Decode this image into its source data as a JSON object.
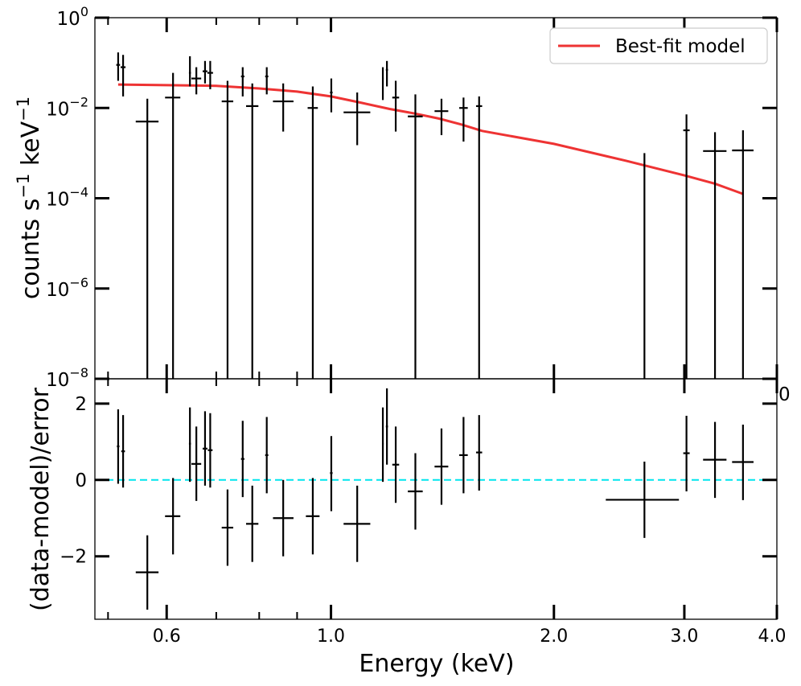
{
  "chart_data": [
    {
      "type": "scatter",
      "panel": "spectrum",
      "ylabel_base": "counts s",
      "ylabel_sup1": "−1",
      "ylabel_mid": " keV",
      "ylabel_sup2": "−1",
      "yscale": "log",
      "xscale": "log",
      "xlim": [
        0.48,
        4.0
      ],
      "ylim": [
        1e-08,
        1
      ],
      "yticks": [
        {
          "value": 1,
          "base": "10",
          "exp": "0"
        },
        {
          "value": 0.01,
          "base": "10",
          "exp": "−2"
        },
        {
          "value": 0.0001,
          "base": "10",
          "exp": "−4"
        },
        {
          "value": 1e-06,
          "base": "10",
          "exp": "−6"
        },
        {
          "value": 1e-08,
          "base": "10",
          "exp": "−8"
        }
      ],
      "legend": {
        "label": "Best-fit model",
        "color": "#ee3333",
        "placement": "top-right"
      },
      "series": [
        {
          "name": "data",
          "color": "#000000",
          "points": [
            {
              "x": 0.516,
              "xlo": 0.513,
              "xhi": 0.519,
              "y": 0.09,
              "ylo": 0.04,
              "yhi": 0.17
            },
            {
              "x": 0.524,
              "xlo": 0.52,
              "xhi": 0.528,
              "y": 0.08,
              "ylo": 0.018,
              "yhi": 0.15
            },
            {
              "x": 0.565,
              "xlo": 0.545,
              "xhi": 0.585,
              "y": 0.005,
              "ylo": 1e-08,
              "yhi": 0.016
            },
            {
              "x": 0.612,
              "xlo": 0.597,
              "xhi": 0.626,
              "y": 0.017,
              "ylo": 1e-08,
              "yhi": 0.06
            },
            {
              "x": 0.645,
              "xlo": 0.643,
              "xhi": 0.647,
              "y": 0.06,
              "ylo": 0.03,
              "yhi": 0.14
            },
            {
              "x": 0.658,
              "xlo": 0.648,
              "xhi": 0.668,
              "y": 0.045,
              "ylo": 0.02,
              "yhi": 0.08
            },
            {
              "x": 0.676,
              "xlo": 0.671,
              "xhi": 0.681,
              "y": 0.065,
              "ylo": 0.035,
              "yhi": 0.11
            },
            {
              "x": 0.687,
              "xlo": 0.681,
              "xhi": 0.693,
              "y": 0.06,
              "ylo": 0.026,
              "yhi": 0.11
            },
            {
              "x": 0.725,
              "xlo": 0.712,
              "xhi": 0.738,
              "y": 0.014,
              "ylo": 1e-08,
              "yhi": 0.04
            },
            {
              "x": 0.76,
              "xlo": 0.756,
              "xhi": 0.764,
              "y": 0.05,
              "ylo": 0.018,
              "yhi": 0.08
            },
            {
              "x": 0.783,
              "xlo": 0.768,
              "xhi": 0.798,
              "y": 0.011,
              "ylo": 1e-08,
              "yhi": 0.035
            },
            {
              "x": 0.819,
              "xlo": 0.815,
              "xhi": 0.823,
              "y": 0.05,
              "ylo": 0.02,
              "yhi": 0.08
            },
            {
              "x": 0.862,
              "xlo": 0.835,
              "xhi": 0.89,
              "y": 0.014,
              "ylo": 0.003,
              "yhi": 0.035
            },
            {
              "x": 0.945,
              "xlo": 0.93,
              "xhi": 0.96,
              "y": 0.01,
              "ylo": 1e-08,
              "yhi": 0.03
            },
            {
              "x": 1.001,
              "xlo": 0.997,
              "xhi": 1.005,
              "y": 0.022,
              "ylo": 0.008,
              "yhi": 0.045
            },
            {
              "x": 1.085,
              "xlo": 1.04,
              "xhi": 1.13,
              "y": 0.008,
              "ylo": 0.0015,
              "yhi": 0.022
            },
            {
              "x": 1.175,
              "xlo": 1.172,
              "xhi": 1.178,
              "y": 0.045,
              "ylo": 0.015,
              "yhi": 0.08
            },
            {
              "x": 1.19,
              "xlo": 1.186,
              "xhi": 1.194,
              "y": 0.07,
              "ylo": 0.03,
              "yhi": 0.11
            },
            {
              "x": 1.223,
              "xlo": 1.21,
              "xhi": 1.236,
              "y": 0.017,
              "ylo": 0.003,
              "yhi": 0.04
            },
            {
              "x": 1.3,
              "xlo": 1.27,
              "xhi": 1.33,
              "y": 0.0065,
              "ylo": 1e-08,
              "yhi": 0.02
            },
            {
              "x": 1.41,
              "xlo": 1.38,
              "xhi": 1.44,
              "y": 0.0085,
              "ylo": 0.0025,
              "yhi": 0.016
            },
            {
              "x": 1.51,
              "xlo": 1.49,
              "xhi": 1.53,
              "y": 0.01,
              "ylo": 0.0018,
              "yhi": 0.017
            },
            {
              "x": 1.585,
              "xlo": 1.57,
              "xhi": 1.6,
              "y": 0.011,
              "ylo": 1e-08,
              "yhi": 0.018
            },
            {
              "x": 2.65,
              "xlo": 2.65,
              "xhi": 2.65,
              "y": 0.0003,
              "ylo": 1e-08,
              "yhi": 0.001
            },
            {
              "x": 3.02,
              "xlo": 2.99,
              "xhi": 3.05,
              "y": 0.0032,
              "ylo": 1e-08,
              "yhi": 0.0072
            },
            {
              "x": 3.3,
              "xlo": 3.18,
              "xhi": 3.42,
              "y": 0.00111,
              "ylo": 1e-08,
              "yhi": 0.0029
            },
            {
              "x": 3.6,
              "xlo": 3.48,
              "xhi": 3.72,
              "y": 0.00115,
              "ylo": 1e-08,
              "yhi": 0.0032
            }
          ]
        },
        {
          "name": "Best-fit model",
          "color": "#ee3333",
          "line": [
            {
              "x": 0.516,
              "y": 0.033
            },
            {
              "x": 0.6,
              "y": 0.032
            },
            {
              "x": 0.7,
              "y": 0.031
            },
            {
              "x": 0.8,
              "y": 0.027
            },
            {
              "x": 0.9,
              "y": 0.023
            },
            {
              "x": 1.0,
              "y": 0.018
            },
            {
              "x": 1.1,
              "y": 0.013
            },
            {
              "x": 1.2,
              "y": 0.0095
            },
            {
              "x": 1.3,
              "y": 0.0075
            },
            {
              "x": 1.4,
              "y": 0.0058
            },
            {
              "x": 1.5,
              "y": 0.0043
            },
            {
              "x": 1.6,
              "y": 0.0031
            },
            {
              "x": 2.0,
              "y": 0.0016
            },
            {
              "x": 2.5,
              "y": 0.00068
            },
            {
              "x": 3.0,
              "y": 0.00032
            },
            {
              "x": 3.3,
              "y": 0.00021
            },
            {
              "x": 3.6,
              "y": 0.000125
            }
          ]
        }
      ]
    },
    {
      "type": "scatter",
      "panel": "residuals",
      "ylabel": "(data-model)/error",
      "xlabel": "Energy (keV)",
      "xscale": "log",
      "xlim": [
        0.48,
        4.0
      ],
      "ylim": [
        -3.65,
        2.65
      ],
      "xticks": [
        {
          "value": 0.6,
          "label": "0.6"
        },
        {
          "value": 1.0,
          "label": "1.0"
        },
        {
          "value": 2.0,
          "label": "2.0"
        },
        {
          "value": 3.0,
          "label": "3.0"
        },
        {
          "value": 4.0,
          "label": "4.0"
        }
      ],
      "yticks": [
        {
          "value": 2,
          "label": "2"
        },
        {
          "value": 0,
          "label": "0"
        },
        {
          "value": -2,
          "label": "−2"
        }
      ],
      "stray_label": "0",
      "zero_line_color": "#00e5ee",
      "series": [
        {
          "name": "residuals",
          "color": "#000000",
          "points": [
            {
              "x": 0.516,
              "xlo": 0.514,
              "xhi": 0.518,
              "y": 0.88,
              "ylo": -0.1,
              "yhi": 1.85
            },
            {
              "x": 0.524,
              "xlo": 0.521,
              "xhi": 0.527,
              "y": 0.75,
              "ylo": -0.2,
              "yhi": 1.7
            },
            {
              "x": 0.565,
              "xlo": 0.545,
              "xhi": 0.585,
              "y": -2.42,
              "ylo": -3.4,
              "yhi": -1.45
            },
            {
              "x": 0.612,
              "xlo": 0.597,
              "xhi": 0.626,
              "y": -0.95,
              "ylo": -1.95,
              "yhi": 0.05
            },
            {
              "x": 0.645,
              "xlo": 0.643,
              "xhi": 0.647,
              "y": 0.95,
              "ylo": -0.05,
              "yhi": 1.9
            },
            {
              "x": 0.658,
              "xlo": 0.648,
              "xhi": 0.668,
              "y": 0.42,
              "ylo": -0.55,
              "yhi": 1.4
            },
            {
              "x": 0.676,
              "xlo": 0.671,
              "xhi": 0.681,
              "y": 0.82,
              "ylo": -0.15,
              "yhi": 1.8
            },
            {
              "x": 0.687,
              "xlo": 0.682,
              "xhi": 0.692,
              "y": 0.78,
              "ylo": -0.2,
              "yhi": 1.75
            },
            {
              "x": 0.725,
              "xlo": 0.712,
              "xhi": 0.738,
              "y": -1.25,
              "ylo": -2.25,
              "yhi": -0.25
            },
            {
              "x": 0.76,
              "xlo": 0.756,
              "xhi": 0.764,
              "y": 0.55,
              "ylo": -0.45,
              "yhi": 1.55
            },
            {
              "x": 0.783,
              "xlo": 0.768,
              "xhi": 0.798,
              "y": -1.15,
              "ylo": -2.15,
              "yhi": -0.15
            },
            {
              "x": 0.819,
              "xlo": 0.815,
              "xhi": 0.823,
              "y": 0.65,
              "ylo": -0.35,
              "yhi": 1.65
            },
            {
              "x": 0.862,
              "xlo": 0.835,
              "xhi": 0.89,
              "y": -1.0,
              "ylo": -2.0,
              "yhi": 0.0
            },
            {
              "x": 0.945,
              "xlo": 0.925,
              "xhi": 0.965,
              "y": -0.95,
              "ylo": -1.95,
              "yhi": 0.05
            },
            {
              "x": 1.001,
              "xlo": 0.997,
              "xhi": 1.005,
              "y": 0.18,
              "ylo": -0.82,
              "yhi": 1.15
            },
            {
              "x": 1.085,
              "xlo": 1.04,
              "xhi": 1.13,
              "y": -1.15,
              "ylo": -2.15,
              "yhi": -0.15
            },
            {
              "x": 1.175,
              "xlo": 1.172,
              "xhi": 1.178,
              "y": 0.95,
              "ylo": -0.05,
              "yhi": 1.9
            },
            {
              "x": 1.19,
              "xlo": 1.186,
              "xhi": 1.194,
              "y": 1.4,
              "ylo": 0.4,
              "yhi": 2.4
            },
            {
              "x": 1.223,
              "xlo": 1.21,
              "xhi": 1.236,
              "y": 0.4,
              "ylo": -0.6,
              "yhi": 1.4
            },
            {
              "x": 1.3,
              "xlo": 1.27,
              "xhi": 1.33,
              "y": -0.3,
              "ylo": -1.3,
              "yhi": 0.7
            },
            {
              "x": 1.41,
              "xlo": 1.38,
              "xhi": 1.44,
              "y": 0.35,
              "ylo": -0.65,
              "yhi": 1.35
            },
            {
              "x": 1.51,
              "xlo": 1.49,
              "xhi": 1.53,
              "y": 0.65,
              "ylo": -0.35,
              "yhi": 1.65
            },
            {
              "x": 1.585,
              "xlo": 1.57,
              "xhi": 1.6,
              "y": 0.72,
              "ylo": -0.28,
              "yhi": 1.7
            },
            {
              "x": 2.65,
              "xlo": 2.35,
              "xhi": 2.95,
              "y": -0.52,
              "ylo": -1.52,
              "yhi": 0.48
            },
            {
              "x": 3.02,
              "xlo": 2.99,
              "xhi": 3.05,
              "y": 0.7,
              "ylo": -0.3,
              "yhi": 1.68
            },
            {
              "x": 3.3,
              "xlo": 3.18,
              "xhi": 3.42,
              "y": 0.53,
              "ylo": -0.47,
              "yhi": 1.52
            },
            {
              "x": 3.6,
              "xlo": 3.48,
              "xhi": 3.72,
              "y": 0.47,
              "ylo": -0.53,
              "yhi": 1.45
            }
          ]
        }
      ]
    }
  ]
}
